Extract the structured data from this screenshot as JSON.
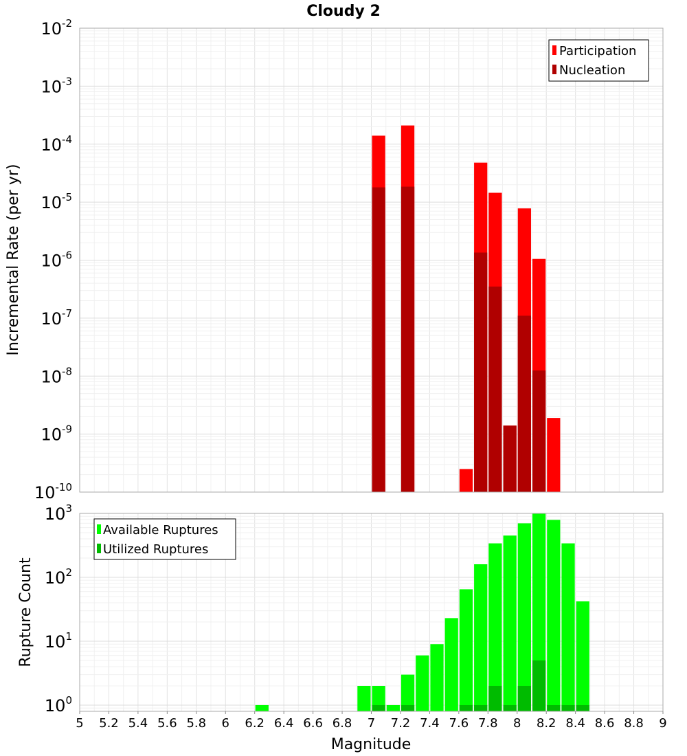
{
  "chart_data": {
    "type": "bar",
    "title": "Cloudy 2",
    "x_label": "Magnitude",
    "x_range": [
      5,
      9
    ],
    "x_ticks": [
      "5",
      "5.2",
      "5.4",
      "5.6",
      "5.8",
      "6",
      "6.2",
      "6.4",
      "6.6",
      "6.8",
      "7",
      "7.2",
      "7.4",
      "7.6",
      "7.8",
      "8",
      "8.2",
      "8.4",
      "8.6",
      "8.8",
      "9"
    ],
    "bin_width": 0.1,
    "grid": true,
    "panels": [
      {
        "id": "rate",
        "y_label": "Incremental Rate (per yr)",
        "y_scale": "log",
        "y_range": [
          1e-10,
          0.01
        ],
        "y_ticks": [
          {
            "base": "10",
            "exp": "-2"
          },
          {
            "base": "10",
            "exp": "-3"
          },
          {
            "base": "10",
            "exp": "-4"
          },
          {
            "base": "10",
            "exp": "-5"
          },
          {
            "base": "10",
            "exp": "-6"
          },
          {
            "base": "10",
            "exp": "-7"
          },
          {
            "base": "10",
            "exp": "-8"
          },
          {
            "base": "10",
            "exp": "-9"
          },
          {
            "base": "10",
            "exp": "-10"
          }
        ],
        "legend_position": "top-right",
        "series": [
          {
            "name": "Participation",
            "color": "#ff0000",
            "points": [
              {
                "x": 7.05,
                "y": 0.00014
              },
              {
                "x": 7.25,
                "y": 0.00021
              },
              {
                "x": 7.65,
                "y": 2.5e-10
              },
              {
                "x": 7.75,
                "y": 4.8e-05
              },
              {
                "x": 7.85,
                "y": 1.45e-05
              },
              {
                "x": 7.95,
                "y": 1.4e-09
              },
              {
                "x": 8.05,
                "y": 7.8e-06
              },
              {
                "x": 8.15,
                "y": 1.05e-06
              },
              {
                "x": 8.25,
                "y": 1.9e-09
              }
            ]
          },
          {
            "name": "Nucleation",
            "color": "#b00000",
            "points": [
              {
                "x": 7.05,
                "y": 1.8e-05
              },
              {
                "x": 7.25,
                "y": 1.85e-05
              },
              {
                "x": 7.75,
                "y": 1.35e-06
              },
              {
                "x": 7.85,
                "y": 3.5e-07
              },
              {
                "x": 7.95,
                "y": 1.4e-09
              },
              {
                "x": 8.05,
                "y": 1.1e-07
              },
              {
                "x": 8.15,
                "y": 1.25e-08
              }
            ]
          }
        ]
      },
      {
        "id": "count",
        "y_label": "Rupture Count",
        "y_scale": "log",
        "y_range": [
          0.8,
          1000
        ],
        "y_ticks": [
          {
            "base": "10",
            "exp": "3",
            "value": 1000
          },
          {
            "base": "10",
            "exp": "2",
            "value": 100
          },
          {
            "base": "10",
            "exp": "1",
            "value": 10
          },
          {
            "base": "10",
            "exp": "0",
            "value": 1
          }
        ],
        "legend_position": "top-left",
        "series": [
          {
            "name": "Available Ruptures",
            "color": "#00ff00",
            "points": [
              {
                "x": 6.25,
                "y": 1
              },
              {
                "x": 6.95,
                "y": 2
              },
              {
                "x": 7.05,
                "y": 2
              },
              {
                "x": 7.15,
                "y": 1
              },
              {
                "x": 7.25,
                "y": 3
              },
              {
                "x": 7.35,
                "y": 6
              },
              {
                "x": 7.45,
                "y": 9
              },
              {
                "x": 7.55,
                "y": 23
              },
              {
                "x": 7.65,
                "y": 65
              },
              {
                "x": 7.75,
                "y": 160
              },
              {
                "x": 7.85,
                "y": 340
              },
              {
                "x": 7.95,
                "y": 450
              },
              {
                "x": 8.05,
                "y": 700
              },
              {
                "x": 8.15,
                "y": 1000
              },
              {
                "x": 8.25,
                "y": 790
              },
              {
                "x": 8.35,
                "y": 340
              },
              {
                "x": 8.45,
                "y": 42
              }
            ]
          },
          {
            "name": "Utilized Ruptures",
            "color": "#00bb00",
            "points": [
              {
                "x": 7.05,
                "y": 1
              },
              {
                "x": 7.25,
                "y": 1
              },
              {
                "x": 7.65,
                "y": 1
              },
              {
                "x": 7.75,
                "y": 1
              },
              {
                "x": 7.85,
                "y": 2
              },
              {
                "x": 7.95,
                "y": 1
              },
              {
                "x": 8.05,
                "y": 2
              },
              {
                "x": 8.15,
                "y": 5
              },
              {
                "x": 8.25,
                "y": 1
              },
              {
                "x": 8.35,
                "y": 1
              },
              {
                "x": 8.45,
                "y": 1
              }
            ]
          }
        ]
      }
    ]
  }
}
